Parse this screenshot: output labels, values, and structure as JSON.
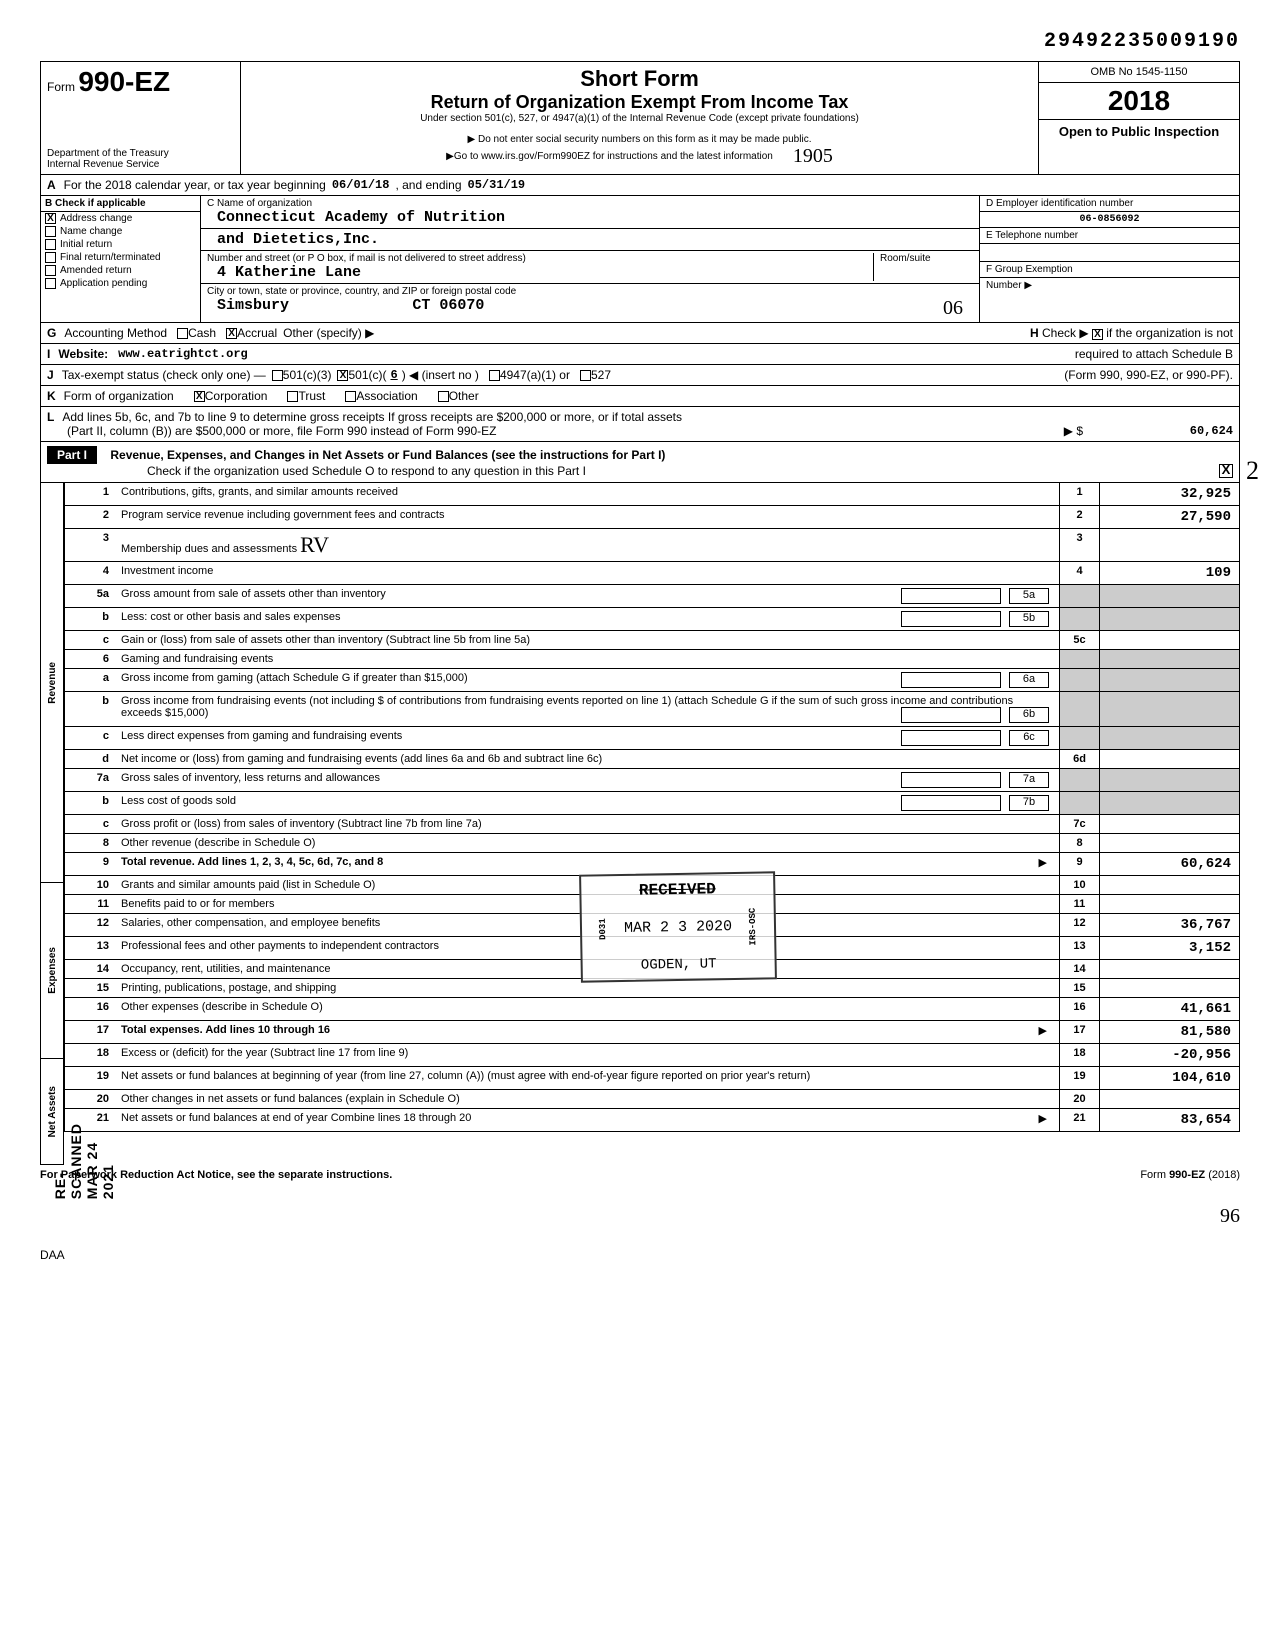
{
  "doc_number": "29492235009190",
  "form": {
    "prefix": "Form",
    "number": "990-EZ",
    "dept1": "Department of the Treasury",
    "dept2": "Internal Revenue Service",
    "title": "Short Form",
    "subtitle": "Return of Organization Exempt From Income Tax",
    "under": "Under section 501(c), 527, or 4947(a)(1) of the Internal Revenue Code (except private foundations)",
    "note1": "▶ Do not enter social security numbers on this form as it may be made public.",
    "note2": "▶Go to www.irs.gov/Form990EZ for instructions and the latest information",
    "omb": "OMB No 1545-1150",
    "year": "2018",
    "open": "Open to Public Inspection",
    "hand_num": "1905"
  },
  "line_a": {
    "label": "A",
    "text": "For the 2018 calendar year, or tax year beginning",
    "begin": "06/01/18",
    "mid": ", and ending",
    "end": "05/31/19"
  },
  "section_b": {
    "header": "B  Check if applicable",
    "checks": [
      {
        "label": "Address change",
        "checked": true
      },
      {
        "label": "Name change",
        "checked": false
      },
      {
        "label": "Initial return",
        "checked": false
      },
      {
        "label": "Final return/terminated",
        "checked": false
      },
      {
        "label": "Amended return",
        "checked": false
      },
      {
        "label": "Application pending",
        "checked": false
      }
    ],
    "c_label": "C  Name of organization",
    "org_name1": "Connecticut Academy of Nutrition",
    "org_name2": "and Dietetics,Inc.",
    "addr_label": "Number and street (or P O box, if mail is not delivered to street address)",
    "room_label": "Room/suite",
    "addr": "4 Katherine Lane",
    "city_label": "City or town, state or province, country, and ZIP or foreign postal code",
    "city": "Simsbury",
    "state_zip": "CT 06070",
    "hand_city": "06",
    "d_label": "D  Employer identification number",
    "ein": "06-0856092",
    "e_label": "E  Telephone number",
    "f_label": "F  Group Exemption",
    "f_sub": "Number  ▶"
  },
  "line_g": {
    "label": "G",
    "text": "Accounting Method",
    "cash": "Cash",
    "accrual": "Accrual",
    "other": "Other (specify) ▶",
    "accrual_checked": true
  },
  "line_h": {
    "label": "H",
    "text1": "Check ▶",
    "text2": "if the organization is not",
    "text3": "required to attach Schedule B",
    "text4": "(Form 990, 990-EZ, or 990-PF).",
    "checked": true
  },
  "line_i": {
    "label": "I",
    "text": "Website:",
    "url": "www.eatrightct.org"
  },
  "line_j": {
    "label": "J",
    "text": "Tax-exempt status (check only one) —",
    "c3": "501(c)(3)",
    "c": "501(c)(",
    "insert": ") ◀ (insert no )",
    "num": "6",
    "a1": "4947(a)(1) or",
    "s527": "527",
    "c_checked": true
  },
  "line_k": {
    "label": "K",
    "text": "Form of organization",
    "corp": "Corporation",
    "trust": "Trust",
    "assoc": "Association",
    "other": "Other",
    "corp_checked": true
  },
  "line_l": {
    "label": "L",
    "text1": "Add lines 5b, 6c, and 7b to line 9 to determine gross receipts  If gross receipts are $200,000 or more, or if total assets",
    "text2": "(Part II, column (B)) are $500,000 or more, file Form 990 instead of Form 990-EZ",
    "arrow": "▶  $",
    "value": "60,624"
  },
  "part1": {
    "label": "Part I",
    "title": "Revenue, Expenses, and Changes in Net Assets or Fund Balances (see the instructions for Part I)",
    "check_text": "Check if the organization used Schedule O to respond to any question in this Part I",
    "checked": true,
    "hand_mark": "2"
  },
  "vert_labels": {
    "revenue": "Revenue",
    "expenses": "Expenses",
    "netassets": "Net Assets"
  },
  "scanned": "RE-SCANNED  MAR 24 2021",
  "rows": [
    {
      "n": "1",
      "text": "Contributions, gifts, grants, and similar amounts received",
      "col": "1",
      "val": "32,925"
    },
    {
      "n": "2",
      "text": "Program service revenue including government fees and contracts",
      "col": "2",
      "val": "27,590"
    },
    {
      "n": "3",
      "text": "Membership dues and assessments",
      "col": "3",
      "val": "",
      "hand": "RV"
    },
    {
      "n": "4",
      "text": "Investment income",
      "col": "4",
      "val": "109"
    },
    {
      "n": "5a",
      "text": "Gross amount from sale of assets other than inventory",
      "mid": "5a",
      "shade": true
    },
    {
      "n": "b",
      "text": "Less: cost or other basis and sales expenses",
      "mid": "5b",
      "shade": true
    },
    {
      "n": "c",
      "text": "Gain or (loss) from sale of assets other than inventory (Subtract line 5b from line 5a)",
      "col": "5c",
      "val": ""
    },
    {
      "n": "6",
      "text": "Gaming and fundraising events",
      "shade": true
    },
    {
      "n": "a",
      "text": "Gross income from gaming (attach Schedule G if greater than $15,000)",
      "mid": "6a",
      "shade": true
    },
    {
      "n": "b",
      "text": "Gross income from fundraising events (not including $                              of contributions from fundraising events reported on line 1) (attach Schedule G if the sum of such gross income and contributions exceeds $15,000)",
      "mid": "6b",
      "shade": true
    },
    {
      "n": "c",
      "text": "Less  direct expenses from gaming and fundraising events",
      "mid": "6c",
      "shade": true
    },
    {
      "n": "d",
      "text": "Net income or (loss) from gaming and fundraising events (add lines 6a and 6b and subtract line 6c)",
      "col": "6d",
      "val": ""
    },
    {
      "n": "7a",
      "text": "Gross sales of inventory, less returns and allowances",
      "mid": "7a",
      "shade": true
    },
    {
      "n": "b",
      "text": "Less  cost of goods sold",
      "mid": "7b",
      "shade": true
    },
    {
      "n": "c",
      "text": "Gross profit or (loss) from sales of inventory (Subtract line 7b from line 7a)",
      "col": "7c",
      "val": ""
    },
    {
      "n": "8",
      "text": "Other revenue (describe in Schedule O)",
      "col": "8",
      "val": ""
    },
    {
      "n": "9",
      "text": "Total revenue. Add lines 1, 2, 3, 4, 5c, 6d, 7c, and 8",
      "arrow": "▶",
      "col": "9",
      "val": "60,624",
      "bold": true
    },
    {
      "n": "10",
      "text": "Grants and similar amounts paid (list in Schedule O)",
      "col": "10",
      "val": ""
    },
    {
      "n": "11",
      "text": "Benefits paid to or for members",
      "col": "11",
      "val": ""
    },
    {
      "n": "12",
      "text": "Salaries, other compensation, and employee benefits",
      "col": "12",
      "val": "36,767"
    },
    {
      "n": "13",
      "text": "Professional fees and other payments to independent contractors",
      "col": "13",
      "val": "3,152"
    },
    {
      "n": "14",
      "text": "Occupancy, rent, utilities, and maintenance",
      "col": "14",
      "val": ""
    },
    {
      "n": "15",
      "text": "Printing, publications, postage, and shipping",
      "col": "15",
      "val": ""
    },
    {
      "n": "16",
      "text": "Other expenses (describe in Schedule O)",
      "col": "16",
      "val": "41,661"
    },
    {
      "n": "17",
      "text": "Total expenses. Add lines 10 through 16",
      "arrow": "▶",
      "col": "17",
      "val": "81,580",
      "bold": true
    },
    {
      "n": "18",
      "text": "Excess or (deficit) for the year (Subtract line 17 from line 9)",
      "col": "18",
      "val": "-20,956"
    },
    {
      "n": "19",
      "text": "Net assets or fund balances at beginning of year (from line 27, column (A)) (must agree with end-of-year figure reported on prior year's return)",
      "col": "19",
      "val": "104,610"
    },
    {
      "n": "20",
      "text": "Other changes in net assets or fund balances (explain in Schedule O)",
      "col": "20",
      "val": ""
    },
    {
      "n": "21",
      "text": "Net assets or fund balances at end of year  Combine lines 18 through 20",
      "arrow": "▶",
      "col": "21",
      "val": "83,654"
    }
  ],
  "stamp": {
    "received": "RECEIVED",
    "date": "MAR 2 3 2020",
    "loc": "OGDEN, UT",
    "side1": "D031",
    "side2": "IRS-OSC"
  },
  "footer": {
    "left": "For Paperwork Reduction Act Notice, see the separate instructions.",
    "right": "Form 990-EZ (2018)",
    "daa": "DAA",
    "hand": "96"
  }
}
